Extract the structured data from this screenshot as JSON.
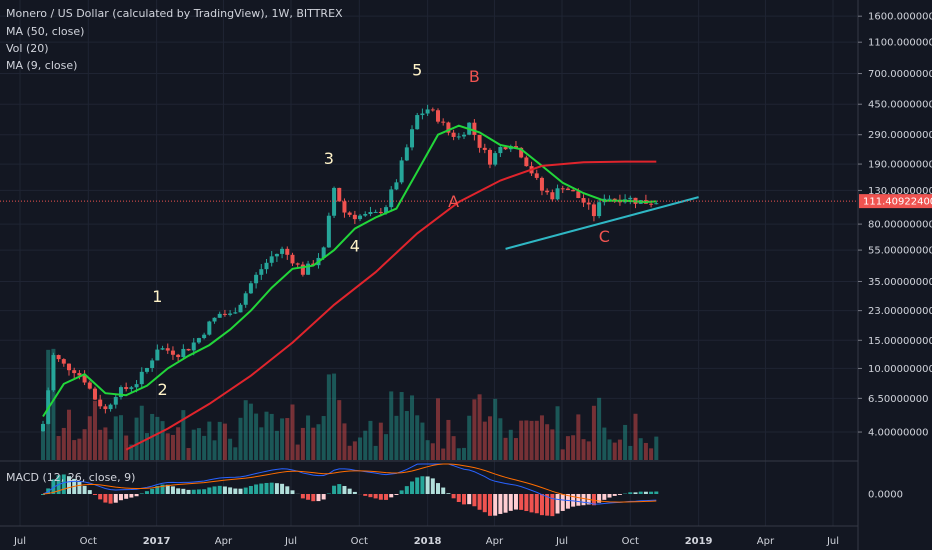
{
  "header": {
    "title": "Monero / US Dollar (calculated by TradingView), 1W, BITTREX",
    "indicators": [
      "MA (50, close)",
      "Vol (20)",
      "MA (9, close)"
    ]
  },
  "macd_label": "MACD (12, 26, close, 9)",
  "colors": {
    "background": "#131722",
    "up": "#26a69a",
    "down": "#ef5350",
    "ma50": "#e0242c",
    "ma9": "#22d63a",
    "trendline": "#2fb7c4",
    "price_line": "#ef5350",
    "text": "#d1d4dc"
  },
  "chart_data": {
    "type": "candlestick",
    "y_scale": "log",
    "ylim": [
      3.0,
      1800
    ],
    "price_axis_labels": [
      "1600.00000000",
      "1100.00000000",
      "700.00000000",
      "450.00000000",
      "290.00000000",
      "190.00000000",
      "130.00000000",
      "80.00000000",
      "55.00000000",
      "35.00000000",
      "23.00000000",
      "15.00000000",
      "10.00000000",
      "6.50000000",
      "4.00000000"
    ],
    "price_axis_values": [
      1600,
      1100,
      700,
      450,
      290,
      190,
      130,
      80,
      55,
      35,
      23,
      15,
      10,
      6.5,
      4
    ],
    "current_price": {
      "value": 111.409224,
      "label": "111.40922400"
    },
    "macd_axis_labels": [
      "0.0000"
    ],
    "time_axis": {
      "labels": [
        "Jul",
        "Oct",
        "2017",
        "Apr",
        "Jul",
        "Oct",
        "2018",
        "Apr",
        "Jul",
        "Oct",
        "2019",
        "Apr",
        "Jul"
      ],
      "dates": [
        "2016-07-01",
        "2016-10-01",
        "2017-01-01",
        "2017-04-01",
        "2017-07-01",
        "2017-10-01",
        "2018-01-01",
        "2018-04-01",
        "2018-07-01",
        "2018-10-01",
        "2019-01-01",
        "2019-04-01",
        "2019-07-01"
      ]
    },
    "price_path": [
      [
        "2016-08-01",
        4.5
      ],
      [
        "2016-08-15",
        12.0
      ],
      [
        "2016-08-29",
        10.5
      ],
      [
        "2016-09-12",
        9.8
      ],
      [
        "2016-09-26",
        8.5
      ],
      [
        "2016-10-10",
        6.5
      ],
      [
        "2016-10-24",
        5.5
      ],
      [
        "2016-11-07",
        7.0
      ],
      [
        "2016-11-21",
        7.5
      ],
      [
        "2016-12-05",
        8.2
      ],
      [
        "2016-12-19",
        10.0
      ],
      [
        "2017-01-02",
        13.5
      ],
      [
        "2017-01-16",
        13.0
      ],
      [
        "2017-01-30",
        12.5
      ],
      [
        "2017-02-13",
        13.5
      ],
      [
        "2017-02-27",
        15.5
      ],
      [
        "2017-03-13",
        19.0
      ],
      [
        "2017-03-27",
        22.0
      ],
      [
        "2017-04-10",
        21.5
      ],
      [
        "2017-04-24",
        26.0
      ],
      [
        "2017-05-08",
        34.0
      ],
      [
        "2017-05-22",
        42.0
      ],
      [
        "2017-06-05",
        50.0
      ],
      [
        "2017-06-19",
        55.0
      ],
      [
        "2017-07-03",
        48.0
      ],
      [
        "2017-07-17",
        40.0
      ],
      [
        "2017-07-31",
        46.0
      ],
      [
        "2017-08-14",
        55.0
      ],
      [
        "2017-08-28",
        135.0
      ],
      [
        "2017-09-11",
        95.0
      ],
      [
        "2017-09-25",
        90.0
      ],
      [
        "2017-10-09",
        90.0
      ],
      [
        "2017-10-23",
        92.0
      ],
      [
        "2017-11-06",
        105.0
      ],
      [
        "2017-11-20",
        150.0
      ],
      [
        "2017-12-04",
        240.0
      ],
      [
        "2017-12-18",
        380.0
      ],
      [
        "2018-01-01",
        420.0
      ],
      [
        "2018-01-15",
        370.0
      ],
      [
        "2018-01-29",
        300.0
      ],
      [
        "2018-02-12",
        280.0
      ],
      [
        "2018-02-26",
        340.0
      ],
      [
        "2018-03-12",
        250.0
      ],
      [
        "2018-03-26",
        200.0
      ],
      [
        "2018-04-09",
        240.0
      ],
      [
        "2018-04-23",
        260.0
      ],
      [
        "2018-05-07",
        220.0
      ],
      [
        "2018-05-21",
        170.0
      ],
      [
        "2018-06-04",
        130.0
      ],
      [
        "2018-06-18",
        120.0
      ],
      [
        "2018-07-02",
        140.0
      ],
      [
        "2018-07-16",
        125.0
      ],
      [
        "2018-07-30",
        110.0
      ],
      [
        "2018-08-13",
        92.0
      ],
      [
        "2018-08-27",
        120.0
      ],
      [
        "2018-09-10",
        115.0
      ],
      [
        "2018-09-24",
        118.0
      ],
      [
        "2018-10-08",
        112.0
      ],
      [
        "2018-10-22",
        110.0
      ],
      [
        "2018-11-05",
        111.4
      ]
    ],
    "series": [
      {
        "name": "MA (9, close)",
        "points": [
          [
            "2016-08-01",
            5.0
          ],
          [
            "2016-08-29",
            8.0
          ],
          [
            "2016-09-26",
            9.2
          ],
          [
            "2016-10-24",
            7.0
          ],
          [
            "2016-11-21",
            6.8
          ],
          [
            "2016-12-19",
            7.8
          ],
          [
            "2017-01-16",
            10.0
          ],
          [
            "2017-02-13",
            12.0
          ],
          [
            "2017-03-13",
            14.0
          ],
          [
            "2017-04-10",
            17.5
          ],
          [
            "2017-05-08",
            23.0
          ],
          [
            "2017-06-05",
            32.0
          ],
          [
            "2017-07-03",
            42.0
          ],
          [
            "2017-07-31",
            44.0
          ],
          [
            "2017-08-28",
            55.0
          ],
          [
            "2017-09-25",
            75.0
          ],
          [
            "2017-10-23",
            88.0
          ],
          [
            "2017-11-20",
            100.0
          ],
          [
            "2017-12-18",
            170.0
          ],
          [
            "2018-01-15",
            290.0
          ],
          [
            "2018-02-12",
            330.0
          ],
          [
            "2018-03-12",
            300.0
          ],
          [
            "2018-04-09",
            250.0
          ],
          [
            "2018-05-07",
            235.0
          ],
          [
            "2018-06-04",
            185.0
          ],
          [
            "2018-07-02",
            145.0
          ],
          [
            "2018-07-30",
            125.0
          ],
          [
            "2018-08-27",
            112.0
          ],
          [
            "2018-09-24",
            112.0
          ],
          [
            "2018-10-22",
            110.0
          ],
          [
            "2018-11-05",
            111.0
          ]
        ]
      },
      {
        "name": "MA (50, close)",
        "points": [
          [
            "2016-11-21",
            3.1
          ],
          [
            "2017-01-16",
            4.2
          ],
          [
            "2017-03-13",
            6.0
          ],
          [
            "2017-05-08",
            9.0
          ],
          [
            "2017-07-03",
            14.5
          ],
          [
            "2017-08-28",
            25.0
          ],
          [
            "2017-10-23",
            40.0
          ],
          [
            "2017-12-18",
            70.0
          ],
          [
            "2018-02-12",
            110.0
          ],
          [
            "2018-04-09",
            150.0
          ],
          [
            "2018-06-04",
            185.0
          ],
          [
            "2018-07-30",
            195.0
          ],
          [
            "2018-09-24",
            197.0
          ],
          [
            "2018-11-05",
            197.0
          ]
        ]
      }
    ],
    "trendline": [
      [
        "2018-04-16",
        56.0
      ],
      [
        "2019-01-01",
        118.0
      ]
    ],
    "wave_labels": [
      {
        "text": "1",
        "date": "2017-01-02",
        "price": 26.0,
        "color": "#fff3c8"
      },
      {
        "text": "2",
        "date": "2017-01-09",
        "price": 6.8,
        "color": "#fff3c8"
      },
      {
        "text": "3",
        "date": "2017-08-21",
        "price": 190.0,
        "color": "#fff3c8"
      },
      {
        "text": "4",
        "date": "2017-09-25",
        "price": 54.0,
        "color": "#fff3c8"
      },
      {
        "text": "5",
        "date": "2017-12-18",
        "price": 680.0,
        "color": "#fff3c8"
      },
      {
        "text": "A",
        "date": "2018-02-05",
        "price": 102.0,
        "color": "#ef5350"
      },
      {
        "text": "B",
        "date": "2018-03-05",
        "price": 620.0,
        "color": "#ef5350"
      },
      {
        "text": "C",
        "date": "2018-08-27",
        "price": 62.0,
        "color": "#ef5350"
      }
    ]
  }
}
